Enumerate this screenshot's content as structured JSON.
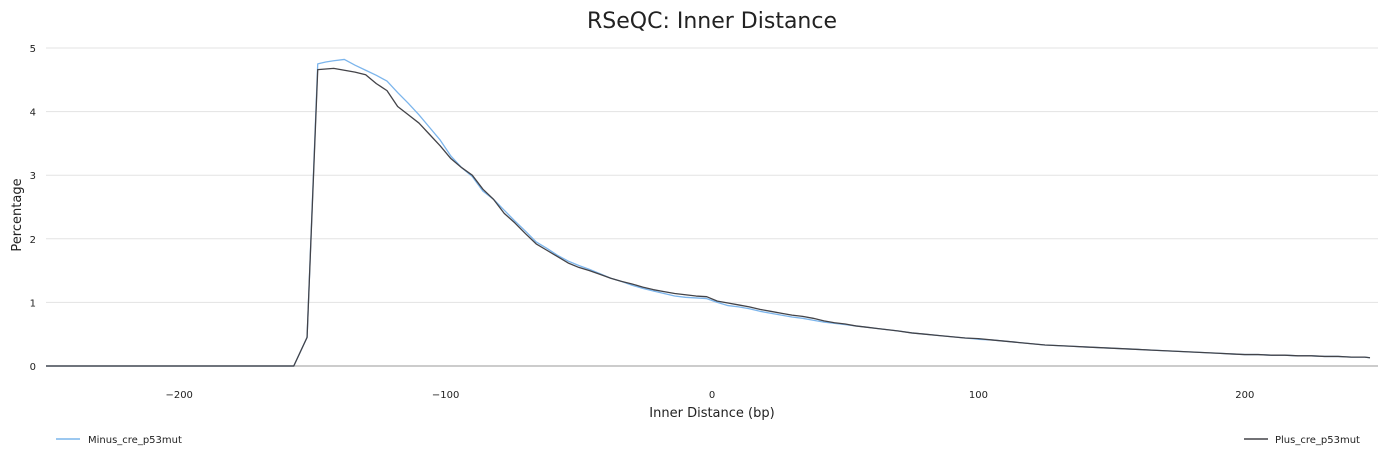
{
  "chart_data": {
    "type": "line",
    "title": "RSeQC: Inner Distance",
    "xlabel": "Inner Distance (bp)",
    "ylabel": "Percentage",
    "xlim": [
      -250,
      250
    ],
    "ylim": [
      0,
      5
    ],
    "xticks": [
      -200,
      -100,
      0,
      100,
      200
    ],
    "xtick_labels": [
      "−200",
      "−100",
      "0",
      "100",
      "200"
    ],
    "yticks": [
      0,
      1,
      2,
      3,
      4,
      5
    ],
    "ytick_labels": [
      "0",
      "1",
      "2",
      "3",
      "4",
      "5"
    ],
    "grid": true,
    "legend_placement": "bottom",
    "series": [
      {
        "name": "Minus_cre_p53mut",
        "color": "#7cb5ec",
        "points": [
          [
            -250,
            0
          ],
          [
            -160,
            0
          ],
          [
            -157,
            0
          ],
          [
            -152,
            0.45
          ],
          [
            -148,
            4.75
          ],
          [
            -145,
            4.78
          ],
          [
            -142,
            4.8
          ],
          [
            -138,
            4.82
          ],
          [
            -134,
            4.73
          ],
          [
            -130,
            4.65
          ],
          [
            -126,
            4.57
          ],
          [
            -122,
            4.48
          ],
          [
            -118,
            4.3
          ],
          [
            -114,
            4.13
          ],
          [
            -110,
            3.95
          ],
          [
            -106,
            3.75
          ],
          [
            -102,
            3.55
          ],
          [
            -98,
            3.3
          ],
          [
            -94,
            3.12
          ],
          [
            -90,
            2.98
          ],
          [
            -86,
            2.75
          ],
          [
            -82,
            2.62
          ],
          [
            -78,
            2.45
          ],
          [
            -74,
            2.28
          ],
          [
            -70,
            2.12
          ],
          [
            -66,
            1.95
          ],
          [
            -62,
            1.85
          ],
          [
            -58,
            1.74
          ],
          [
            -54,
            1.65
          ],
          [
            -50,
            1.58
          ],
          [
            -46,
            1.52
          ],
          [
            -42,
            1.45
          ],
          [
            -38,
            1.38
          ],
          [
            -34,
            1.33
          ],
          [
            -30,
            1.27
          ],
          [
            -26,
            1.22
          ],
          [
            -22,
            1.18
          ],
          [
            -18,
            1.14
          ],
          [
            -14,
            1.1
          ],
          [
            -10,
            1.08
          ],
          [
            -6,
            1.07
          ],
          [
            -2,
            1.06
          ],
          [
            2,
            1.0
          ],
          [
            6,
            0.95
          ],
          [
            10,
            0.93
          ],
          [
            14,
            0.9
          ],
          [
            18,
            0.86
          ],
          [
            22,
            0.83
          ],
          [
            26,
            0.8
          ],
          [
            30,
            0.77
          ],
          [
            34,
            0.75
          ],
          [
            38,
            0.72
          ],
          [
            42,
            0.69
          ],
          [
            46,
            0.67
          ],
          [
            50,
            0.65
          ],
          [
            54,
            0.63
          ],
          [
            58,
            0.61
          ],
          [
            62,
            0.59
          ],
          [
            66,
            0.57
          ],
          [
            70,
            0.55
          ],
          [
            75,
            0.52
          ],
          [
            80,
            0.5
          ],
          [
            85,
            0.48
          ],
          [
            90,
            0.46
          ],
          [
            95,
            0.44
          ],
          [
            100,
            0.42
          ],
          [
            105,
            0.41
          ],
          [
            110,
            0.39
          ],
          [
            115,
            0.37
          ],
          [
            120,
            0.35
          ],
          [
            125,
            0.33
          ],
          [
            130,
            0.32
          ],
          [
            135,
            0.31
          ],
          [
            140,
            0.3
          ],
          [
            145,
            0.29
          ],
          [
            150,
            0.28
          ],
          [
            155,
            0.27
          ],
          [
            160,
            0.26
          ],
          [
            165,
            0.25
          ],
          [
            170,
            0.24
          ],
          [
            175,
            0.23
          ],
          [
            180,
            0.22
          ],
          [
            185,
            0.21
          ],
          [
            190,
            0.2
          ],
          [
            195,
            0.19
          ],
          [
            200,
            0.18
          ],
          [
            205,
            0.18
          ],
          [
            210,
            0.17
          ],
          [
            215,
            0.17
          ],
          [
            220,
            0.16
          ],
          [
            225,
            0.16
          ],
          [
            230,
            0.15
          ],
          [
            235,
            0.15
          ],
          [
            240,
            0.14
          ],
          [
            245,
            0.14
          ],
          [
            247,
            0.13
          ]
        ]
      },
      {
        "name": "Plus_cre_p53mut",
        "color": "#434348",
        "points": [
          [
            -250,
            0
          ],
          [
            -160,
            0
          ],
          [
            -157,
            0
          ],
          [
            -152,
            0.45
          ],
          [
            -148,
            4.66
          ],
          [
            -145,
            4.67
          ],
          [
            -142,
            4.68
          ],
          [
            -138,
            4.65
          ],
          [
            -134,
            4.62
          ],
          [
            -130,
            4.58
          ],
          [
            -126,
            4.44
          ],
          [
            -122,
            4.33
          ],
          [
            -118,
            4.08
          ],
          [
            -114,
            3.95
          ],
          [
            -110,
            3.82
          ],
          [
            -106,
            3.64
          ],
          [
            -102,
            3.46
          ],
          [
            -98,
            3.26
          ],
          [
            -94,
            3.12
          ],
          [
            -90,
            3.0
          ],
          [
            -86,
            2.78
          ],
          [
            -82,
            2.62
          ],
          [
            -78,
            2.4
          ],
          [
            -74,
            2.25
          ],
          [
            -70,
            2.08
          ],
          [
            -66,
            1.92
          ],
          [
            -62,
            1.82
          ],
          [
            -58,
            1.72
          ],
          [
            -54,
            1.62
          ],
          [
            -50,
            1.55
          ],
          [
            -46,
            1.5
          ],
          [
            -42,
            1.44
          ],
          [
            -38,
            1.38
          ],
          [
            -34,
            1.33
          ],
          [
            -30,
            1.29
          ],
          [
            -26,
            1.24
          ],
          [
            -22,
            1.2
          ],
          [
            -18,
            1.17
          ],
          [
            -14,
            1.14
          ],
          [
            -10,
            1.12
          ],
          [
            -6,
            1.1
          ],
          [
            -2,
            1.09
          ],
          [
            2,
            1.02
          ],
          [
            6,
            0.99
          ],
          [
            10,
            0.96
          ],
          [
            14,
            0.93
          ],
          [
            18,
            0.89
          ],
          [
            22,
            0.86
          ],
          [
            26,
            0.83
          ],
          [
            30,
            0.8
          ],
          [
            34,
            0.78
          ],
          [
            38,
            0.75
          ],
          [
            42,
            0.71
          ],
          [
            46,
            0.68
          ],
          [
            50,
            0.66
          ],
          [
            54,
            0.63
          ],
          [
            58,
            0.61
          ],
          [
            62,
            0.59
          ],
          [
            66,
            0.57
          ],
          [
            70,
            0.55
          ],
          [
            75,
            0.52
          ],
          [
            80,
            0.5
          ],
          [
            85,
            0.48
          ],
          [
            90,
            0.46
          ],
          [
            95,
            0.44
          ],
          [
            100,
            0.43
          ],
          [
            105,
            0.41
          ],
          [
            110,
            0.39
          ],
          [
            115,
            0.37
          ],
          [
            120,
            0.35
          ],
          [
            125,
            0.33
          ],
          [
            130,
            0.32
          ],
          [
            135,
            0.31
          ],
          [
            140,
            0.3
          ],
          [
            145,
            0.29
          ],
          [
            150,
            0.28
          ],
          [
            155,
            0.27
          ],
          [
            160,
            0.26
          ],
          [
            165,
            0.25
          ],
          [
            170,
            0.24
          ],
          [
            175,
            0.23
          ],
          [
            180,
            0.22
          ],
          [
            185,
            0.21
          ],
          [
            190,
            0.2
          ],
          [
            195,
            0.19
          ],
          [
            200,
            0.18
          ],
          [
            205,
            0.18
          ],
          [
            210,
            0.17
          ],
          [
            215,
            0.17
          ],
          [
            220,
            0.16
          ],
          [
            225,
            0.16
          ],
          [
            230,
            0.15
          ],
          [
            235,
            0.15
          ],
          [
            240,
            0.14
          ],
          [
            245,
            0.14
          ],
          [
            247,
            0.13
          ]
        ]
      }
    ]
  }
}
